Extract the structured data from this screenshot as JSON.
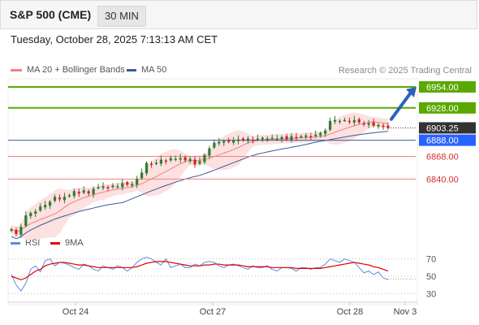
{
  "header": {
    "instrument": "S&P 500 (CME)",
    "timeframe": "30 MIN",
    "timestamp": "Tuesday, October 28, 2025 7:13:13 AM CET"
  },
  "legend": {
    "ma20_label": "MA 20 + Bollinger Bands",
    "ma50_label": "MA 50",
    "copyright": "Research © 2025 Trading Central"
  },
  "indicator_legend": {
    "rsi_label": "RSI",
    "ma9_label": "9MA"
  },
  "colors": {
    "resistance": "#5aa800",
    "support": "#f08080",
    "ma20": "#f08080",
    "ma50": "#3a5a9a",
    "band": "#fde0e0",
    "bull": "#2e7d32",
    "bear": "#c62828",
    "rsi": "#5b8be0",
    "rsi_ma": "#e00000",
    "current_price_bg": "#333333",
    "pivot_bg": "#2962ff",
    "arrow": "#2a63b8"
  },
  "chart_data": [
    {
      "type": "candlestick",
      "x_axis": {
        "ticks": [
          "Oct 24",
          "Oct 27",
          "Oct 28",
          "Nov 3"
        ]
      },
      "y_range": [
        6770,
        6965
      ],
      "levels": [
        {
          "value": 6954.0,
          "label": "6954.00",
          "kind": "resistance"
        },
        {
          "value": 6928.0,
          "label": "6928.00",
          "kind": "resistance"
        },
        {
          "value": 6903.25,
          "label": "6903.25",
          "kind": "current"
        },
        {
          "value": 6888.0,
          "label": "6888.00",
          "kind": "pivot"
        },
        {
          "value": 6868.0,
          "label": "6868.00",
          "kind": "support"
        },
        {
          "value": 6840.0,
          "label": "6840.00",
          "kind": "support"
        }
      ],
      "price_path": [
        6778,
        6772,
        6781,
        6795,
        6798,
        6800,
        6806,
        6808,
        6812,
        6818,
        6815,
        6818,
        6820,
        6825,
        6822,
        6826,
        6822,
        6828,
        6830,
        6831,
        6829,
        6832,
        6831,
        6835,
        6833,
        6834,
        6840,
        6848,
        6860,
        6858,
        6860,
        6864,
        6862,
        6866,
        6865,
        6866,
        6863,
        6865,
        6858,
        6862,
        6870,
        6878,
        6885,
        6886,
        6887,
        6886,
        6888,
        6889,
        6888,
        6890,
        6888,
        6890,
        6891,
        6890,
        6891,
        6890,
        6892,
        6889,
        6893,
        6891,
        6893,
        6894,
        6892,
        6895,
        6897,
        6900,
        6912,
        6913,
        6912,
        6913,
        6911,
        6913,
        6910,
        6908,
        6909,
        6906,
        6907,
        6905,
        6903
      ],
      "series_lines": [
        "MA 20 + Bollinger Bands",
        "MA 50"
      ],
      "trend_projection": "up"
    },
    {
      "type": "line",
      "name": "RSI",
      "y_ticks": [
        70,
        50,
        30
      ],
      "ylim": [
        20,
        80
      ],
      "series": [
        {
          "name": "RSI",
          "values": [
            52,
            40,
            33,
            42,
            58,
            62,
            55,
            68,
            70,
            62,
            66,
            65,
            63,
            60,
            58,
            64,
            62,
            58,
            56,
            62,
            60,
            58,
            62,
            60,
            56,
            60,
            66,
            70,
            72,
            70,
            66,
            63,
            70,
            60,
            62,
            64,
            60,
            60,
            64,
            62,
            66,
            67,
            66,
            62,
            60,
            63,
            64,
            62,
            60,
            58,
            62,
            60,
            60,
            62,
            58,
            56,
            60,
            60,
            59,
            56,
            60,
            60,
            58,
            60,
            60,
            64,
            70,
            68,
            66,
            70,
            68,
            66,
            60,
            54,
            56,
            52,
            55,
            48,
            46
          ]
        },
        {
          "name": "9MA",
          "values": [
            50,
            48,
            46,
            48,
            52,
            56,
            58,
            62,
            64,
            65,
            66,
            66,
            65,
            64,
            63,
            63,
            62,
            61,
            60,
            60,
            60,
            60,
            60,
            60,
            60,
            60,
            61,
            63,
            65,
            66,
            67,
            67,
            67,
            66,
            65,
            64,
            63,
            62,
            62,
            62,
            63,
            63,
            64,
            64,
            63,
            63,
            63,
            63,
            62,
            61,
            61,
            61,
            61,
            61,
            60,
            60,
            60,
            60,
            60,
            59,
            59,
            59,
            59,
            59,
            59,
            60,
            61,
            62,
            63,
            64,
            65,
            66,
            65,
            64,
            63,
            61,
            60,
            58,
            56
          ]
        }
      ]
    }
  ]
}
